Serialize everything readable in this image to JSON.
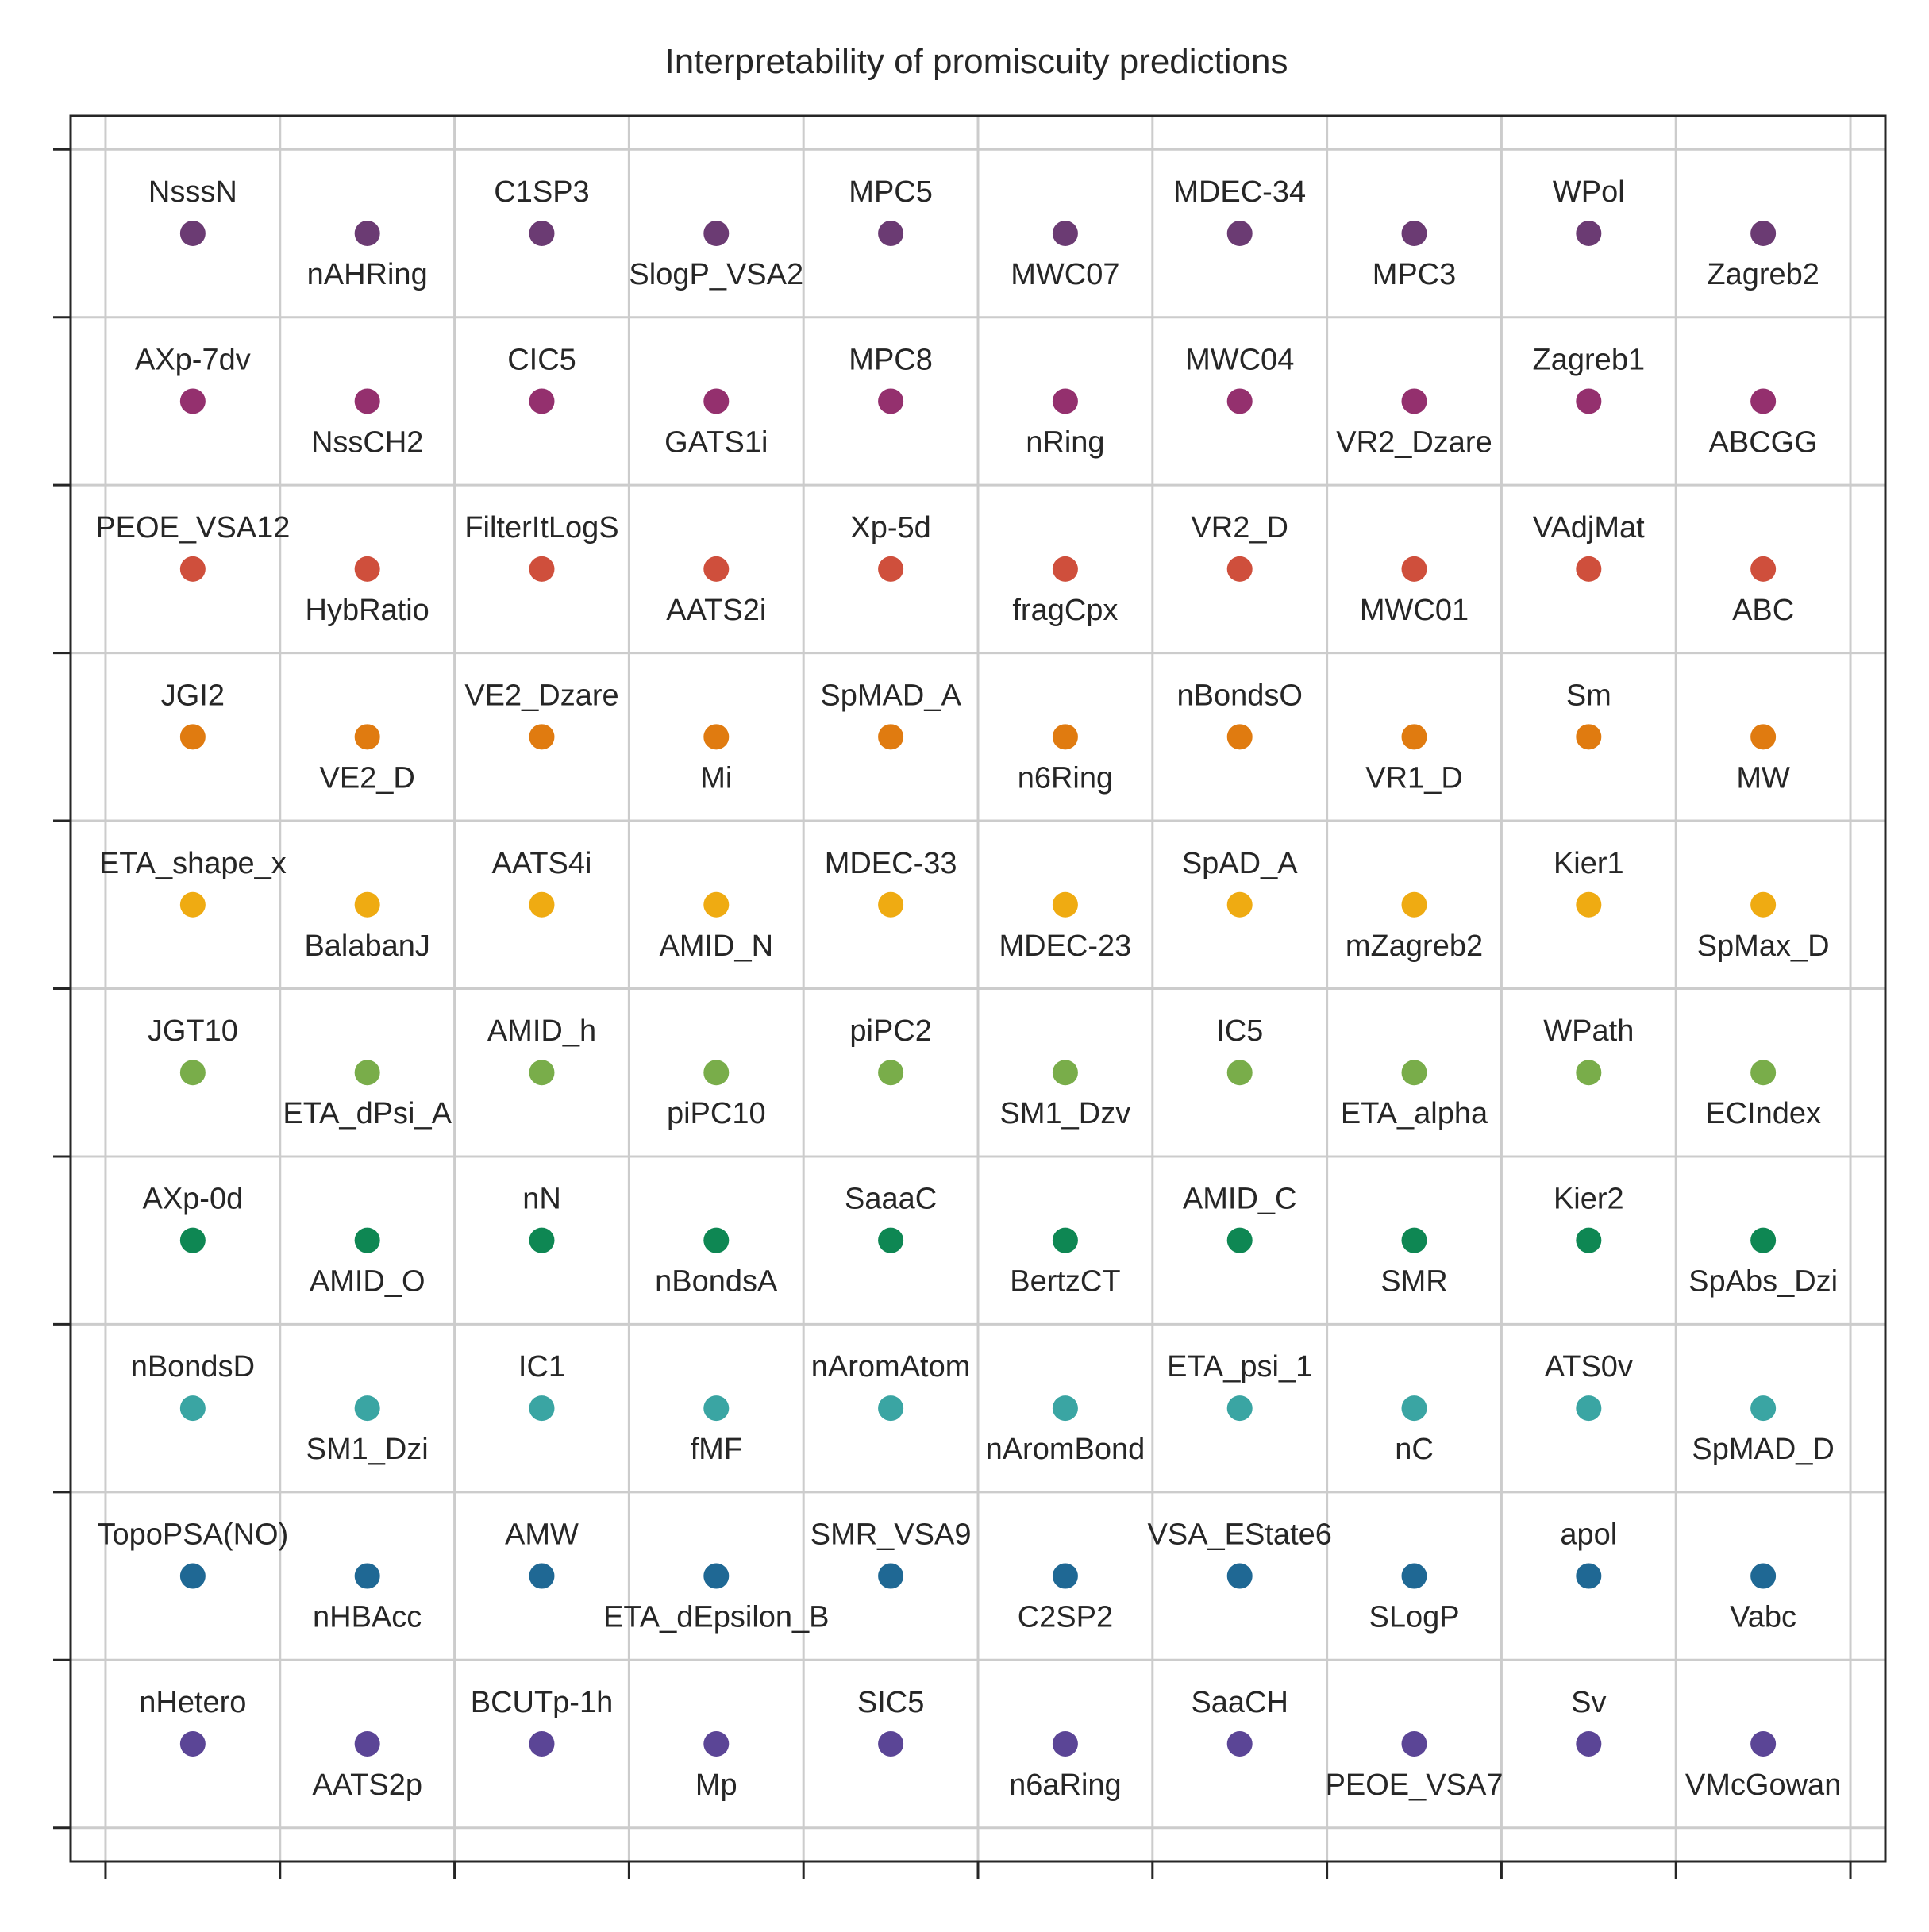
{
  "chart_data": {
    "type": "scatter",
    "title": "Interpretability of promiscuity predictions",
    "xlabel": "",
    "ylabel": "",
    "xlim": [
      -0.2,
      10.2
    ],
    "ylim": [
      -0.2,
      10.2
    ],
    "grid": true,
    "x_tick_labels": [],
    "y_tick_labels": [],
    "rows": [
      {
        "color": "#6b3b73",
        "labels": [
          "NsssN",
          "nAHRing",
          "C1SP3",
          "SlogP_VSA2",
          "MPC5",
          "MWC07",
          "MDEC-34",
          "MPC3",
          "WPol",
          "Zagreb2"
        ]
      },
      {
        "color": "#94306e",
        "labels": [
          "AXp-7dv",
          "NssCH2",
          "CIC5",
          "GATS1i",
          "MPC8",
          "nRing",
          "MWC04",
          "VR2_Dzare",
          "Zagreb1",
          "ABCGG"
        ]
      },
      {
        "color": "#cf4f3c",
        "labels": [
          "PEOE_VSA12",
          "HybRatio",
          "FilterItLogS",
          "AATS2i",
          "Xp-5d",
          "fragCpx",
          "VR2_D",
          "MWC01",
          "VAdjMat",
          "ABC"
        ]
      },
      {
        "color": "#e07b10",
        "labels": [
          "JGI2",
          "VE2_D",
          "VE2_Dzare",
          "Mi",
          "SpMAD_A",
          "n6Ring",
          "nBondsO",
          "VR1_D",
          "Sm",
          "MW"
        ]
      },
      {
        "color": "#efab12",
        "labels": [
          "ETA_shape_x",
          "BalabanJ",
          "AATS4i",
          "AMID_N",
          "MDEC-33",
          "MDEC-23",
          "SpAD_A",
          "mZagreb2",
          "Kier1",
          "SpMax_D"
        ]
      },
      {
        "color": "#79ad4a",
        "labels": [
          "JGT10",
          "ETA_dPsi_A",
          "AMID_h",
          "piPC10",
          "piPC2",
          "SM1_Dzv",
          "IC5",
          "ETA_alpha",
          "WPath",
          "ECIndex"
        ]
      },
      {
        "color": "#0e8753",
        "labels": [
          "AXp-0d",
          "AMID_O",
          "nN",
          "nBondsA",
          "SaaaC",
          "BertzCT",
          "AMID_C",
          "SMR",
          "Kier2",
          "SpAbs_Dzi"
        ]
      },
      {
        "color": "#3aa5a3",
        "labels": [
          "nBondsD",
          "SM1_Dzi",
          "IC1",
          "fMF",
          "nAromAtom",
          "nAromBond",
          "ETA_psi_1",
          "nC",
          "ATS0v",
          "SpMAD_D"
        ]
      },
      {
        "color": "#1f6894",
        "labels": [
          "TopoPSA(NO)",
          "nHBAcc",
          "AMW",
          "ETA_dEpsilon_B",
          "SMR_VSA9",
          "C2SP2",
          "VSA_EState6",
          "SLogP",
          "apol",
          "Vabc"
        ]
      },
      {
        "color": "#5b4596",
        "labels": [
          "nHetero",
          "AATS2p",
          "BCUTp-1h",
          "Mp",
          "SIC5",
          "n6aRing",
          "SaaCH",
          "PEOE_VSA7",
          "Sv",
          "VMcGowan"
        ]
      }
    ]
  }
}
